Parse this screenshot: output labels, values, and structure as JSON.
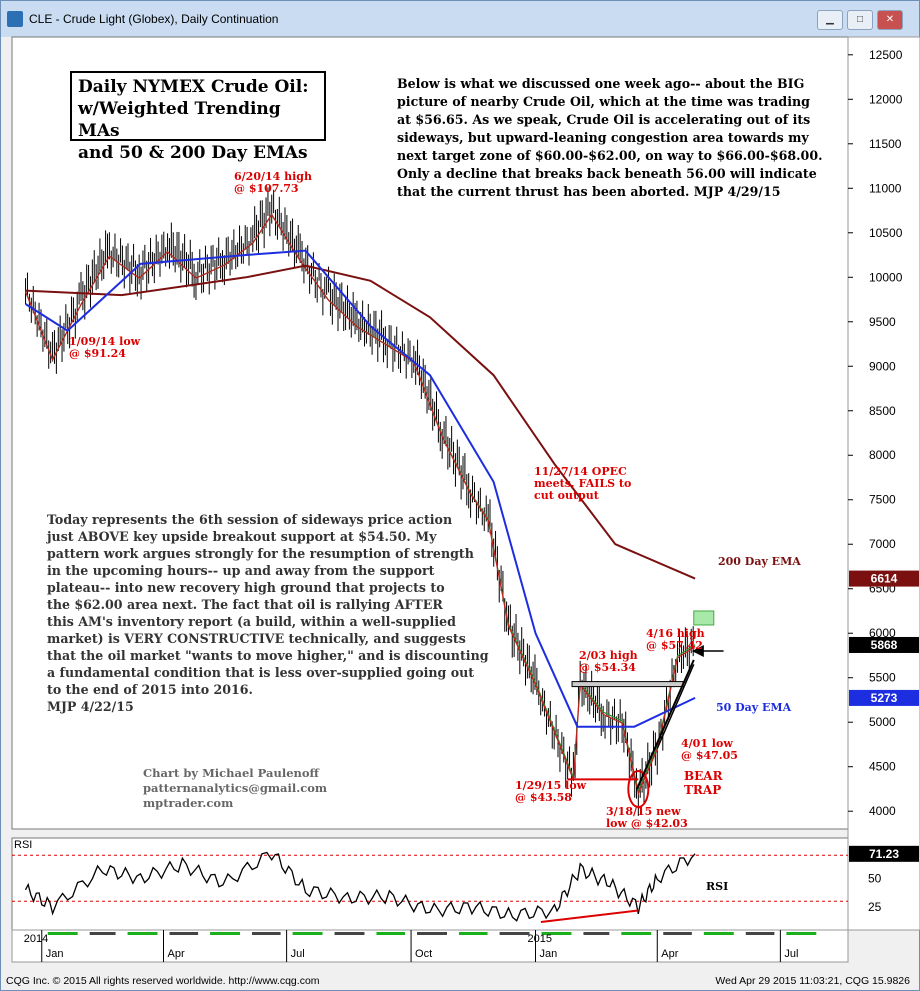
{
  "window": {
    "title": "CLE - Crude Light (Globex), Daily Continuation"
  },
  "annotations": {
    "box_title_lines": [
      "Daily NYMEX Crude Oil:",
      "w/Weighted Trending MAs",
      "and 50 & 200 Day EMAs"
    ],
    "note_top": "Below is what we discussed one week ago-- about the BIG\npicture of nearby Crude Oil, which at the time was trading\nat $56.65. As we speak, Crude Oil is accelerating out of its\nsideways, but upward-leaning congestion area towards my\nnext target zone of $60.00-$62.00, on way to $66.00-$68.00.\nOnly a decline that breaks back beneath 56.00 will indicate\nthat the current thrust has been aborted.  MJP  4/29/15",
    "note_left": "Today represents the 6th session of sideways price action\njust ABOVE key upside breakout support at $54.50. My\npattern work argues strongly for the resumption of strength\nin the upcoming hours-- up and away from the support\nplateau-- into new recovery high ground that projects to\nthe $62.00 area next. The fact that oil is rallying AFTER\nthis AM's inventory report (a build, within a well-supplied\nmarket) is VERY CONSTRUCTIVE technically, and suggests\nthat the oil market \"wants to move higher,\" and is discounting\na fundamental condition that is less over-supplied going out\nto the end of 2015 into 2016.\n                    MJP  4/22/15",
    "credit": "Chart by Michael Paulenoff\npatternanalytics@gmail.com\nmptrader.com",
    "labels": {
      "high_2014": [
        "6/20/14 high",
        "@ $107.73"
      ],
      "low_2014": [
        "1/09/14 low",
        "@ $91.24"
      ],
      "opec": [
        "11/27/14 OPEC",
        "meets, FAILS to",
        "cut output"
      ],
      "high_feb": [
        "2/03 high",
        "@ $54.34"
      ],
      "high_apr": [
        "4/16 high",
        "@ $57.42"
      ],
      "low_jan": [
        "1/29/15 low",
        "@ $43.58"
      ],
      "low_mar": [
        "3/18/15 new",
        "low @ $42.03"
      ],
      "low_apr": [
        "4/01 low",
        "@ $47.05"
      ],
      "bear_trap": [
        "BEAR",
        "TRAP"
      ],
      "ema200": "200 Day EMA",
      "ema50": "50 Day EMA",
      "rsi_label": "RSI",
      "rsi_panel": "RSI"
    }
  },
  "price_tags": {
    "ema200": "6614",
    "last": "5868",
    "ema50": "5273",
    "rsi": "71.23"
  },
  "status": {
    "left": "CQG Inc. © 2015 All rights reserved worldwide. http://www.cqg.com",
    "right": "Wed Apr 29 2015 11:03:21, CQG 15.9826"
  },
  "colors": {
    "ema200": "#7a1010",
    "ema50": "#1d2ee0",
    "wma_green": "#2f8f2f",
    "wma_red": "#c02020",
    "annot_red": "#dd0000",
    "annot_blue": "#1010c0",
    "tag_ema200": "#7a1010",
    "tag_last": "#000000",
    "tag_ema50": "#1d2ee0"
  },
  "chart_data": {
    "type": "line",
    "title": "CLE - Crude Light (Globex), Daily Continuation",
    "ylim": [
      3800,
      12700
    ],
    "y_ticks": [
      4000,
      4500,
      5000,
      5500,
      6000,
      6500,
      7000,
      7500,
      8000,
      8500,
      9000,
      9500,
      10000,
      10500,
      11000,
      11500,
      12000,
      12500
    ],
    "x_ticks": [
      "Jan",
      "Apr",
      "Jul",
      "Oct",
      "Jan",
      "Apr",
      "Jul"
    ],
    "year_labels": [
      "2014",
      "2015"
    ],
    "series": [
      {
        "name": "price",
        "dates": [
          "2013-12-20",
          "2014-01-09",
          "2014-01-30",
          "2014-02-20",
          "2014-03-14",
          "2014-04-04",
          "2014-04-25",
          "2014-05-16",
          "2014-06-06",
          "2014-06-20",
          "2014-07-11",
          "2014-08-01",
          "2014-08-22",
          "2014-09-12",
          "2014-10-03",
          "2014-10-24",
          "2014-11-14",
          "2014-11-27",
          "2014-12-12",
          "2015-01-02",
          "2015-01-29",
          "2015-02-03",
          "2015-02-20",
          "2015-03-06",
          "2015-03-18",
          "2015-04-01",
          "2015-04-16",
          "2015-04-29"
        ],
        "values": [
          9900,
          9124,
          9750,
          10300,
          10050,
          10350,
          10050,
          10200,
          10450,
          10773,
          10250,
          9800,
          9500,
          9300,
          9100,
          8250,
          7600,
          7300,
          6100,
          5400,
          4358,
          5434,
          5100,
          5000,
          4203,
          4705,
          5742,
          5868
        ]
      },
      {
        "name": "200 Day EMA",
        "dates": [
          "2013-12-20",
          "2014-03-01",
          "2014-06-01",
          "2014-07-15",
          "2014-09-01",
          "2014-10-15",
          "2014-12-01",
          "2015-01-15",
          "2015-03-01",
          "2015-04-29"
        ],
        "values": [
          9850,
          9800,
          10000,
          10130,
          9960,
          9550,
          8900,
          7900,
          7000,
          6614
        ]
      },
      {
        "name": "50 Day EMA",
        "dates": [
          "2013-12-20",
          "2014-01-20",
          "2014-03-15",
          "2014-06-01",
          "2014-07-15",
          "2014-09-01",
          "2014-10-15",
          "2014-12-01",
          "2015-01-01",
          "2015-02-01",
          "2015-03-15",
          "2015-04-29"
        ],
        "values": [
          9700,
          9400,
          10150,
          10250,
          10300,
          9450,
          8900,
          7700,
          6000,
          4950,
          4950,
          5273
        ]
      },
      {
        "name": "RSI",
        "dates": [
          "2013-12-20",
          "2014-01-09",
          "2014-02-15",
          "2014-03-15",
          "2014-04-15",
          "2014-05-15",
          "2014-06-20",
          "2014-07-15",
          "2014-08-15",
          "2014-09-15",
          "2014-10-15",
          "2014-11-15",
          "2014-12-15",
          "2015-01-15",
          "2015-02-03",
          "2015-02-25",
          "2015-03-18",
          "2015-04-01",
          "2015-04-29"
        ],
        "values": [
          40,
          25,
          58,
          50,
          62,
          45,
          72,
          40,
          33,
          34,
          22,
          25,
          18,
          22,
          58,
          45,
          25,
          50,
          71.23
        ]
      }
    ],
    "rsi_ticks": [
      25,
      50
    ]
  }
}
